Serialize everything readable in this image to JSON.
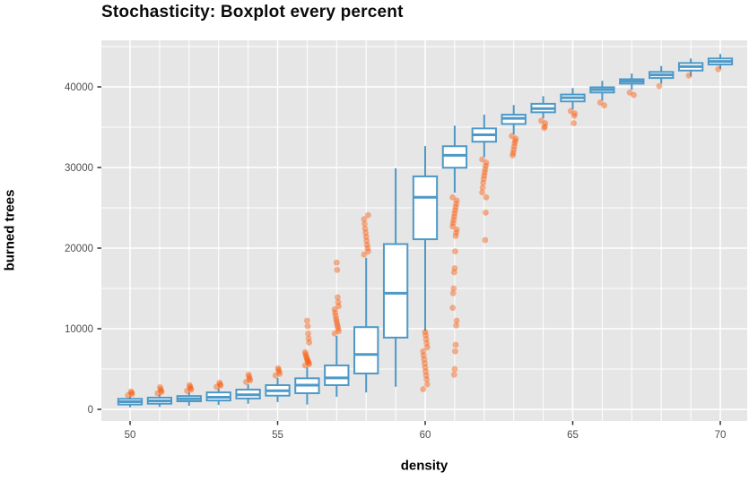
{
  "title": "Stochasticity: Boxplot every percent",
  "axes": {
    "x_label": "density",
    "y_label": "burned trees",
    "x_tick_labels": [
      "50",
      "55",
      "60",
      "65",
      "70"
    ],
    "y_tick_labels": [
      "0",
      "10000",
      "20000",
      "30000",
      "40000"
    ]
  },
  "colors": {
    "panel_bg": "#e6e6e6",
    "grid": "#ffffff",
    "box_stroke": "#4d99c7",
    "box_fill": "#ffffff",
    "outlier": "#f85e10",
    "tick_mark": "#333333",
    "tick_text": "#4d4d4d",
    "title_text": "#0b0b0b"
  },
  "chart_data": {
    "type": "boxplot",
    "title": "Stochasticity: Boxplot every percent",
    "xlabel": "density",
    "ylabel": "burned trees",
    "xlim": [
      49,
      71
    ],
    "ylim": [
      -1400,
      45800
    ],
    "x_ticks": [
      50,
      55,
      60,
      65,
      70
    ],
    "y_ticks": [
      0,
      10000,
      20000,
      30000,
      40000
    ],
    "grid": {
      "on": true,
      "x_line_every": 1,
      "y_line_every": 5000,
      "x_major_every": 5,
      "y_major_every": 10000
    },
    "legend": "none",
    "box_width_units": 0.8,
    "boxes": [
      {
        "x": 50,
        "whislo": 250,
        "q1": 600,
        "med": 950,
        "q3": 1300,
        "whishi": 1600,
        "outliers": [
          1750,
          1900,
          2050,
          2200
        ]
      },
      {
        "x": 51,
        "whislo": 300,
        "q1": 700,
        "med": 1050,
        "q3": 1450,
        "whishi": 1850,
        "outliers": [
          2000,
          2150,
          2300,
          2500,
          2750
        ]
      },
      {
        "x": 52,
        "whislo": 450,
        "q1": 1000,
        "med": 1300,
        "q3": 1650,
        "whishi": 2100,
        "outliers": [
          2300,
          2450,
          2600,
          2800,
          3000
        ]
      },
      {
        "x": 53,
        "whislo": 550,
        "q1": 1100,
        "med": 1500,
        "q3": 2100,
        "whishi": 2600,
        "outliers": [
          2800,
          2950,
          3100,
          3300
        ]
      },
      {
        "x": 54,
        "whislo": 700,
        "q1": 1350,
        "med": 1800,
        "q3": 2450,
        "whishi": 3100,
        "outliers": [
          3400,
          3600,
          3800,
          4050,
          4300
        ]
      },
      {
        "x": 55,
        "whislo": 900,
        "q1": 1700,
        "med": 2300,
        "q3": 3000,
        "whishi": 3900,
        "outliers": [
          4200,
          4400,
          4650,
          4900,
          5100
        ]
      },
      {
        "x": 56,
        "whislo": 600,
        "q1": 2000,
        "med": 3000,
        "q3": 3850,
        "whishi": 5200,
        "outliers": [
          5450,
          5600,
          5750,
          5900,
          6050,
          6200,
          6400,
          6600,
          6850,
          7100,
          8300,
          8800,
          9400,
          10300,
          11000
        ]
      },
      {
        "x": 57,
        "whislo": 1550,
        "q1": 3000,
        "med": 3900,
        "q3": 5450,
        "whishi": 9100,
        "outliers": [
          9400,
          9700,
          10000,
          10300,
          10600,
          10900,
          11200,
          11600,
          12000,
          12400,
          12800,
          13300,
          13900,
          17300,
          18200
        ]
      },
      {
        "x": 58,
        "whislo": 2100,
        "q1": 4450,
        "med": 6800,
        "q3": 10200,
        "whishi": 18800,
        "outliers": [
          19200,
          19600,
          20000,
          20400,
          20900,
          21400,
          21900,
          22400,
          23000,
          23600,
          24100
        ]
      },
      {
        "x": 59,
        "whislo": 2800,
        "q1": 8900,
        "med": 14400,
        "q3": 20500,
        "whishi": 29900,
        "outliers": []
      },
      {
        "x": 60,
        "whislo": 9700,
        "q1": 21100,
        "med": 26300,
        "q3": 28900,
        "whishi": 32650,
        "outliers": [
          2500,
          3100,
          3700,
          4200,
          4700,
          5200,
          5700,
          6200,
          6700,
          7200,
          7700,
          8200,
          8700,
          9200,
          9600
        ]
      },
      {
        "x": 61,
        "whislo": 26870,
        "q1": 29970,
        "med": 31520,
        "q3": 32640,
        "whishi": 35190,
        "outliers": [
          26300,
          25900,
          25500,
          25100,
          24700,
          24300,
          23900,
          23500,
          23100,
          22700,
          22300,
          21900,
          21500,
          19600,
          17500,
          17000,
          15000,
          14400,
          12600,
          11000,
          10400,
          8000,
          7200,
          5000,
          4300
        ]
      },
      {
        "x": 62,
        "whislo": 31300,
        "q1": 33200,
        "med": 34050,
        "q3": 34850,
        "whishi": 36550,
        "outliers": [
          31000,
          30600,
          30200,
          29800,
          29400,
          29000,
          28600,
          28100,
          27500,
          26900,
          26300,
          24400,
          21000
        ]
      },
      {
        "x": 63,
        "whislo": 34100,
        "q1": 35400,
        "med": 36100,
        "q3": 36550,
        "whishi": 37750,
        "outliers": [
          33900,
          33600,
          33300,
          33000,
          32600,
          32200,
          31800,
          31500
        ]
      },
      {
        "x": 64,
        "whislo": 36100,
        "q1": 36850,
        "med": 37300,
        "q3": 37900,
        "whishi": 38850,
        "outliers": [
          35800,
          35500,
          35100,
          34900
        ]
      },
      {
        "x": 65,
        "whislo": 37200,
        "q1": 38200,
        "med": 38650,
        "q3": 39050,
        "whishi": 39850,
        "outliers": [
          37000,
          36700,
          36400,
          35500
        ]
      },
      {
        "x": 66,
        "whislo": 38300,
        "q1": 39300,
        "med": 39650,
        "q3": 39950,
        "whishi": 40750,
        "outliers": [
          38050,
          37700
        ]
      },
      {
        "x": 67,
        "whislo": 39650,
        "q1": 40400,
        "med": 40700,
        "q3": 40950,
        "whishi": 41650,
        "outliers": [
          39300,
          39000
        ]
      },
      {
        "x": 68,
        "whislo": 40400,
        "q1": 41100,
        "med": 41480,
        "q3": 41850,
        "whishi": 42590,
        "outliers": [
          40100
        ]
      },
      {
        "x": 69,
        "whislo": 41300,
        "q1": 42030,
        "med": 42520,
        "q3": 42960,
        "whishi": 43520,
        "outliers": [
          41400
        ]
      },
      {
        "x": 70,
        "whislo": 42220,
        "q1": 42780,
        "med": 43150,
        "q3": 43520,
        "whishi": 44080,
        "outliers": [
          42200
        ]
      }
    ]
  }
}
